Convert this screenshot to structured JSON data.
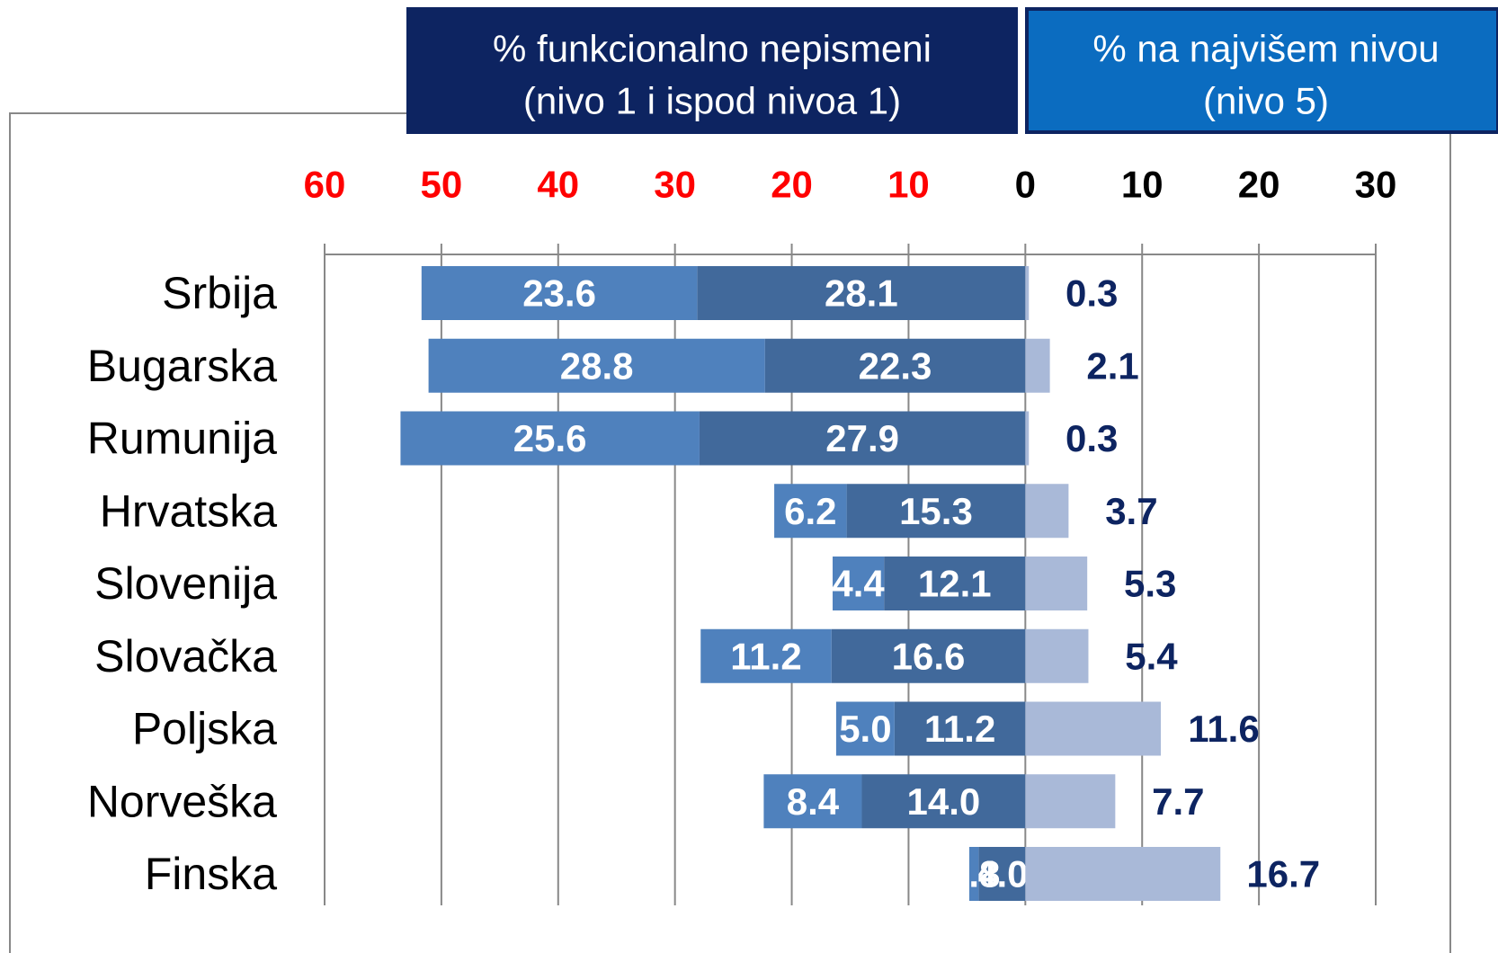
{
  "chart_data": {
    "type": "diverging-bar",
    "headers": [
      [
        "% funkcionalno nepismeni",
        "(nivo 1 i ispod nivoa 1)"
      ],
      [
        "% na najvišem nivou",
        "(nivo 5)"
      ]
    ],
    "categories": [
      "Srbija",
      "Bugarska",
      "Rumunija",
      "Hrvatska",
      "Slovenija",
      "Slovačka",
      "Poljska",
      "Norveška",
      "Finska"
    ],
    "series": [
      {
        "color": "#41699b",
        "label_color": "#ffffff",
        "values": [
          -28.1,
          -22.3,
          -27.9,
          -15.3,
          -12.1,
          -16.6,
          -11.2,
          -14.0,
          -4.0
        ],
        "value_labels": [
          "28.1",
          "22.3",
          "27.9",
          "15.3",
          "12.1",
          "16.6",
          "11.2",
          "14.0",
          "4.0"
        ]
      },
      {
        "color": "#4f81bd",
        "label_color": "#ffffff",
        "values": [
          -23.6,
          -28.8,
          -25.6,
          -6.2,
          -4.4,
          -11.2,
          -5.0,
          -8.4,
          -0.8
        ],
        "value_labels": [
          "23.6",
          "28.8",
          "25.6",
          "6.2",
          "4.4",
          "11.2",
          "5.0",
          "8.4",
          "0.8"
        ]
      },
      {
        "color": "#a9b9d8",
        "label_color": "#0d2461",
        "values": [
          0.3,
          2.1,
          0.3,
          3.7,
          5.3,
          5.4,
          11.6,
          7.7,
          16.7
        ],
        "value_labels": [
          "0.3",
          "2.1",
          "0.3",
          "3.7",
          "5.3",
          "5.4",
          "11.6",
          "7.7",
          "16.7"
        ]
      }
    ],
    "xlim": [
      -60,
      30
    ],
    "xticks": [
      {
        "value": -60,
        "label": "60"
      },
      {
        "value": -50,
        "label": "50"
      },
      {
        "value": -40,
        "label": "40"
      },
      {
        "value": -30,
        "label": "30"
      },
      {
        "value": -20,
        "label": "20"
      },
      {
        "value": -10,
        "label": "10"
      },
      0,
      10,
      20,
      30
    ],
    "negative_tick_color": "#ff0000",
    "tick_color": "#000000",
    "grid": true
  }
}
